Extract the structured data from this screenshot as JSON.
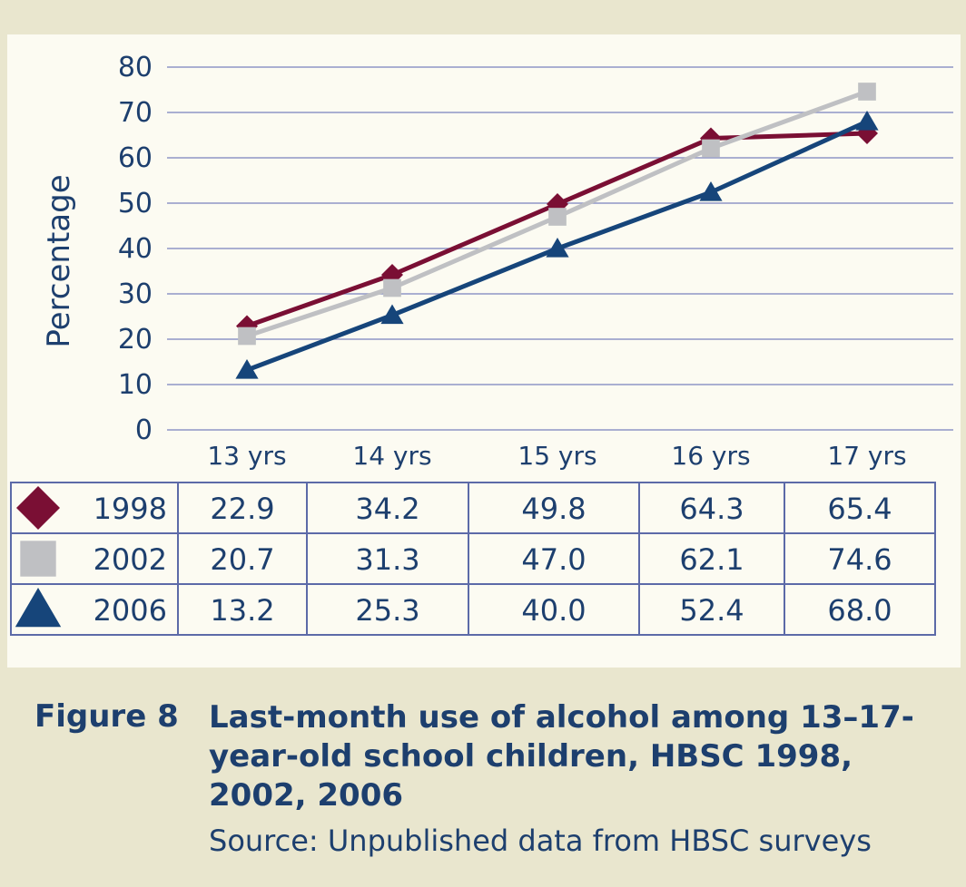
{
  "chart_data": {
    "type": "line",
    "ylabel": "Percentage",
    "ylim": [
      0,
      80
    ],
    "yticks": [
      0,
      10,
      20,
      30,
      40,
      50,
      60,
      70,
      80
    ],
    "categories": [
      "13 yrs",
      "14 yrs",
      "15 yrs",
      "16 yrs",
      "17 yrs"
    ],
    "grid": true,
    "legend_position": "table-left",
    "series": [
      {
        "name": "1998",
        "marker": "diamond",
        "color": "#7a0f34",
        "values": [
          22.9,
          34.2,
          49.8,
          64.3,
          65.4
        ]
      },
      {
        "name": "2002",
        "marker": "square",
        "color": "#bfc0c3",
        "values": [
          20.7,
          31.3,
          47.0,
          62.1,
          74.6
        ]
      },
      {
        "name": "2006",
        "marker": "triangle",
        "color": "#16457a",
        "values": [
          13.2,
          25.3,
          40.0,
          52.4,
          68.0
        ]
      }
    ],
    "table": {
      "rows": [
        [
          "22.9",
          "34.2",
          "49.8",
          "64.3",
          "65.4"
        ],
        [
          "20.7",
          "31.3",
          "47.0",
          "62.1",
          "74.6"
        ],
        [
          "13.2",
          "25.3",
          "40.0",
          "52.4",
          "68.0"
        ]
      ]
    }
  },
  "caption": {
    "figure_label": "Figure 8",
    "title": "Last-month use of alcohol among 13–17-year-old school children, HBSC 1998, 2002, 2006",
    "source": "Source: Unpublished data from HBSC surveys"
  },
  "colors": {
    "grid": "#8f96c6",
    "text": "#1d3f6e",
    "table_border": "#5c6aa8",
    "band": "#e9e6ce",
    "panel": "#fcfbf2"
  }
}
